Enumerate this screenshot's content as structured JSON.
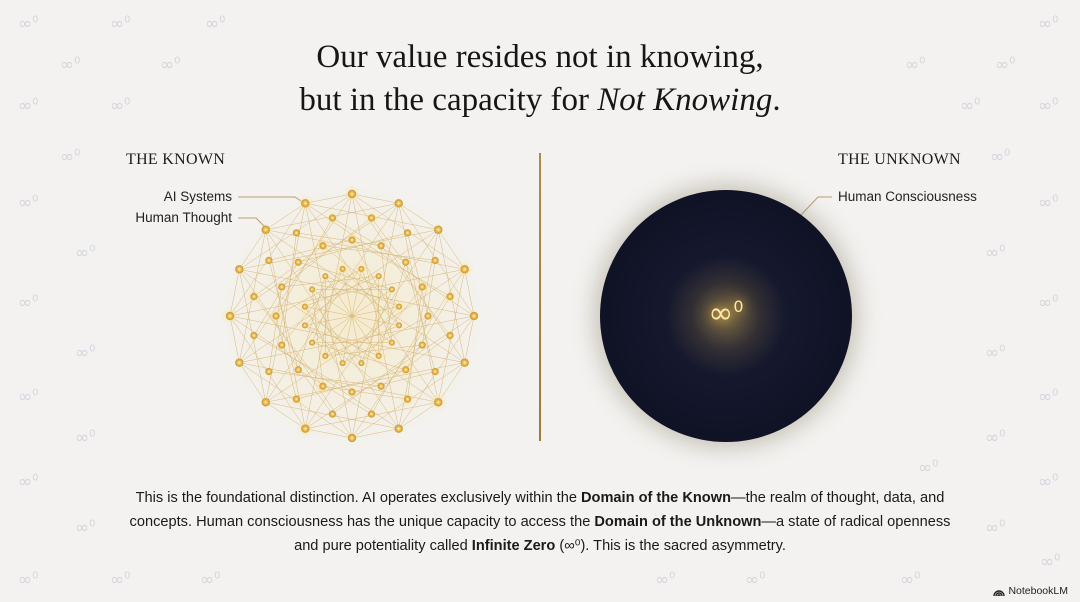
{
  "title": {
    "line1": "Our value resides not in knowing,",
    "line2_prefix": "but in the capacity for ",
    "line2_emphasis": "Not Knowing",
    "line2_suffix": "."
  },
  "known": {
    "heading": "THE KNOWN",
    "labels": [
      "AI Systems",
      "Human Thought"
    ]
  },
  "unknown": {
    "heading": "THE UNKNOWN",
    "label": "Human Consciousness",
    "symbol": "∞",
    "symbol_sup": "0"
  },
  "body": {
    "t1": "This is the foundational distinction. AI operates exclusively within the ",
    "b1": "Domain of the Known",
    "t2": "—the realm of thought, data, and concepts. Human consciousness has the unique capacity to access the ",
    "b2": "Domain of the Unknown",
    "t3": "—a state of radical openness and pure potentiality called ",
    "b3": "Infinite Zero",
    "t4": " (∞⁰). This is the sacred asymmetry."
  },
  "watermark": {
    "symbol": "∞",
    "sup": "0"
  },
  "brand": {
    "label": "NotebookLM",
    "icon": "notebooklm-logo-icon"
  },
  "colors": {
    "gold": "#d4a843",
    "void": "#121529",
    "background": "#f3f2f0"
  }
}
